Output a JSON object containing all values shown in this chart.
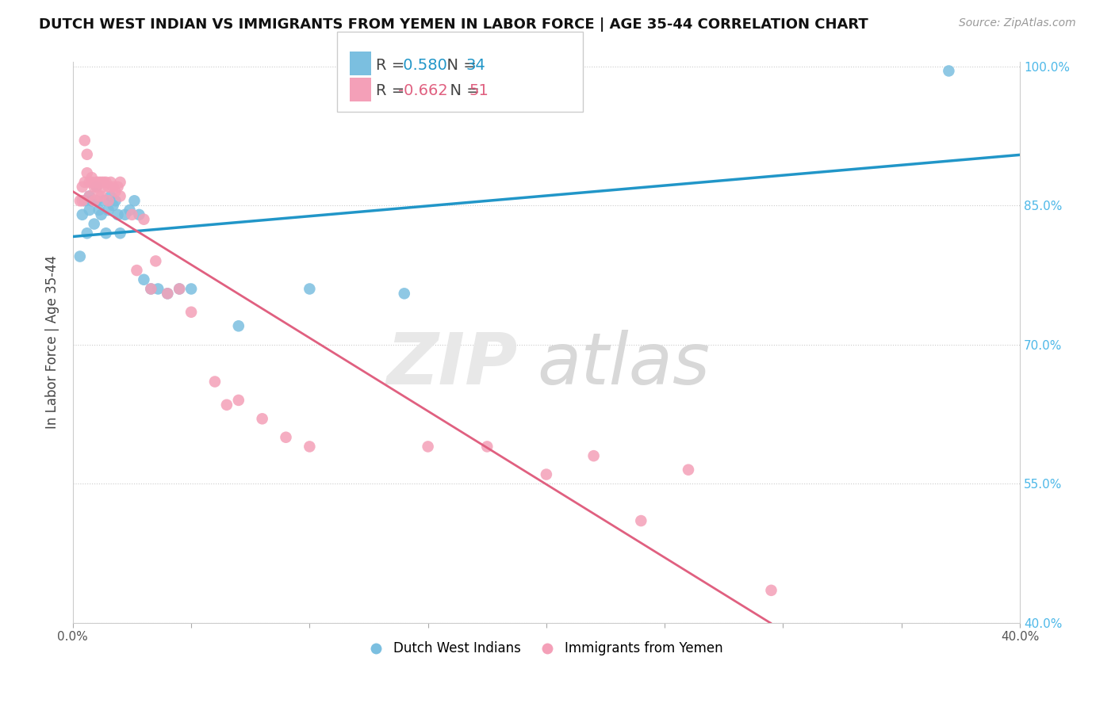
{
  "title": "DUTCH WEST INDIAN VS IMMIGRANTS FROM YEMEN IN LABOR FORCE | AGE 35-44 CORRELATION CHART",
  "source": "Source: ZipAtlas.com",
  "ylabel": "In Labor Force | Age 35-44",
  "x_min": 0.0,
  "x_max": 0.4,
  "y_min": 0.4,
  "y_max": 1.005,
  "x_ticks": [
    0.0,
    0.05,
    0.1,
    0.15,
    0.2,
    0.25,
    0.3,
    0.35,
    0.4
  ],
  "x_tick_labels": [
    "0.0%",
    "",
    "",
    "",
    "",
    "",
    "",
    "",
    "40.0%"
  ],
  "y_ticks": [
    0.4,
    0.55,
    0.7,
    0.85,
    1.0
  ],
  "y_tick_labels": [
    "40.0%",
    "55.0%",
    "70.0%",
    "85.0%",
    "100.0%"
  ],
  "blue_R": 0.58,
  "blue_N": 34,
  "pink_R": -0.662,
  "pink_N": 51,
  "blue_scatter_color": "#7bbfe0",
  "pink_scatter_color": "#f4a0b8",
  "blue_line_color": "#2196c8",
  "pink_line_color": "#e06080",
  "legend_label_blue": "Dutch West Indians",
  "legend_label_pink": "Immigrants from Yemen",
  "blue_scatter_x": [
    0.003,
    0.004,
    0.005,
    0.006,
    0.007,
    0.007,
    0.008,
    0.009,
    0.01,
    0.01,
    0.011,
    0.012,
    0.013,
    0.014,
    0.015,
    0.016,
    0.017,
    0.018,
    0.019,
    0.02,
    0.022,
    0.024,
    0.026,
    0.028,
    0.03,
    0.033,
    0.036,
    0.04,
    0.045,
    0.05,
    0.07,
    0.1,
    0.14,
    0.37
  ],
  "blue_scatter_y": [
    0.795,
    0.84,
    0.855,
    0.82,
    0.845,
    0.86,
    0.855,
    0.83,
    0.855,
    0.87,
    0.845,
    0.84,
    0.855,
    0.82,
    0.845,
    0.86,
    0.85,
    0.855,
    0.84,
    0.82,
    0.84,
    0.845,
    0.855,
    0.84,
    0.77,
    0.76,
    0.76,
    0.755,
    0.76,
    0.76,
    0.72,
    0.76,
    0.755,
    0.995
  ],
  "pink_scatter_x": [
    0.003,
    0.004,
    0.004,
    0.005,
    0.005,
    0.006,
    0.006,
    0.007,
    0.007,
    0.008,
    0.008,
    0.009,
    0.009,
    0.01,
    0.01,
    0.011,
    0.011,
    0.012,
    0.012,
    0.013,
    0.013,
    0.014,
    0.015,
    0.015,
    0.016,
    0.017,
    0.018,
    0.019,
    0.02,
    0.02,
    0.025,
    0.027,
    0.03,
    0.033,
    0.035,
    0.04,
    0.045,
    0.05,
    0.06,
    0.065,
    0.07,
    0.08,
    0.09,
    0.1,
    0.15,
    0.175,
    0.2,
    0.22,
    0.24,
    0.26,
    0.295
  ],
  "pink_scatter_y": [
    0.855,
    0.87,
    0.855,
    0.92,
    0.875,
    0.905,
    0.885,
    0.875,
    0.86,
    0.88,
    0.875,
    0.87,
    0.855,
    0.87,
    0.875,
    0.875,
    0.86,
    0.875,
    0.86,
    0.87,
    0.875,
    0.875,
    0.855,
    0.87,
    0.875,
    0.87,
    0.865,
    0.87,
    0.86,
    0.875,
    0.84,
    0.78,
    0.835,
    0.76,
    0.79,
    0.755,
    0.76,
    0.735,
    0.66,
    0.635,
    0.64,
    0.62,
    0.6,
    0.59,
    0.59,
    0.59,
    0.56,
    0.58,
    0.51,
    0.565,
    0.435
  ]
}
